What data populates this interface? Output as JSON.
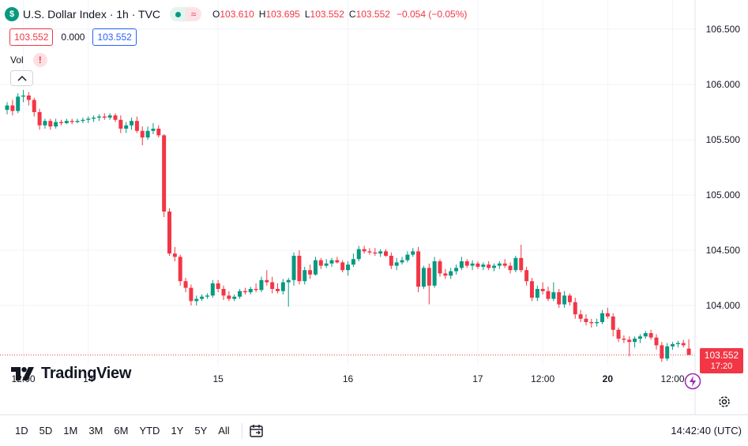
{
  "legend": {
    "symbol_icon": "dollar-icon",
    "symbol_glyph": "$",
    "title": "U.S. Dollar Index · 1h · TVC",
    "status_glyph": "≈",
    "ohlc": {
      "o_label": "O",
      "o": "103.610",
      "h_label": "H",
      "h": "103.695",
      "l_label": "L",
      "l": "103.552",
      "c_label": "C",
      "c": "103.552",
      "change": "−0.054 (−0.05%)"
    },
    "bid": "103.552",
    "spread": "0.000",
    "ask": "103.552",
    "volume_label": "Vol",
    "warning_glyph": "!"
  },
  "last_price": {
    "price": "103.552",
    "countdown": "17:20"
  },
  "brand": "TradingView",
  "bottom_bar": {
    "ranges": [
      "1D",
      "5D",
      "1M",
      "3M",
      "6M",
      "YTD",
      "1Y",
      "5Y",
      "All"
    ],
    "clock": "14:42:40 (UTC)"
  },
  "colors": {
    "up": "#089981",
    "down": "#f23645",
    "grid": "#f0f3fa",
    "axis_text": "#131722"
  },
  "chart_data": {
    "type": "candlestick",
    "y_axis": {
      "range": [
        103.4,
        106.7
      ],
      "ticks": [
        "106.500",
        "106.000",
        "105.500",
        "105.000",
        "104.500",
        "104.000"
      ],
      "tick_values": [
        106.5,
        106.0,
        105.5,
        105.0,
        104.5,
        104.0
      ]
    },
    "x_axis": {
      "labels": [
        {
          "text": "12:00",
          "bar": 3,
          "bold": false
        },
        {
          "text": "14",
          "bar": 15,
          "bold": false
        },
        {
          "text": "15",
          "bar": 39,
          "bold": false
        },
        {
          "text": "16",
          "bar": 63,
          "bold": false
        },
        {
          "text": "17",
          "bar": 87,
          "bold": false
        },
        {
          "text": "12:00",
          "bar": 99,
          "bold": false
        },
        {
          "text": "20",
          "bar": 111,
          "bold": true
        },
        {
          "text": "12:00",
          "bar": 123,
          "bold": false
        }
      ]
    },
    "last_value": 103.552,
    "grid": true,
    "candles": [
      [
        105.77,
        105.84,
        105.73,
        105.81
      ],
      [
        105.81,
        105.86,
        105.72,
        105.76
      ],
      [
        105.76,
        105.92,
        105.74,
        105.89
      ],
      [
        105.89,
        105.95,
        105.84,
        105.9
      ],
      [
        105.9,
        105.93,
        105.81,
        105.86
      ],
      [
        105.86,
        105.88,
        105.71,
        105.75
      ],
      [
        105.75,
        105.78,
        105.59,
        105.63
      ],
      [
        105.63,
        105.69,
        105.6,
        105.67
      ],
      [
        105.67,
        105.69,
        105.59,
        105.62
      ],
      [
        105.62,
        105.69,
        105.6,
        105.66
      ],
      [
        105.66,
        105.68,
        105.63,
        105.65
      ],
      [
        105.65,
        105.69,
        105.64,
        105.67
      ],
      [
        105.67,
        105.69,
        105.64,
        105.66
      ],
      [
        105.66,
        105.69,
        105.65,
        105.67
      ],
      [
        105.67,
        105.7,
        105.65,
        105.68
      ],
      [
        105.68,
        105.71,
        105.65,
        105.69
      ],
      [
        105.69,
        105.72,
        105.66,
        105.7
      ],
      [
        105.7,
        105.73,
        105.67,
        105.71
      ],
      [
        105.71,
        105.74,
        105.68,
        105.7
      ],
      [
        105.7,
        105.74,
        105.68,
        105.72
      ],
      [
        105.72,
        105.74,
        105.66,
        105.68
      ],
      [
        105.68,
        105.72,
        105.56,
        105.6
      ],
      [
        105.6,
        105.66,
        105.56,
        105.63
      ],
      [
        105.63,
        105.7,
        105.59,
        105.67
      ],
      [
        105.67,
        105.71,
        105.56,
        105.58
      ],
      [
        105.58,
        105.62,
        105.45,
        105.52
      ],
      [
        105.52,
        105.62,
        105.5,
        105.58
      ],
      [
        105.58,
        105.65,
        105.55,
        105.6
      ],
      [
        105.6,
        105.63,
        105.52,
        105.54
      ],
      [
        105.54,
        105.55,
        104.8,
        104.85
      ],
      [
        104.85,
        104.88,
        104.45,
        104.47
      ],
      [
        104.47,
        104.53,
        104.4,
        104.44
      ],
      [
        104.44,
        104.46,
        104.18,
        104.22
      ],
      [
        104.22,
        104.25,
        104.12,
        104.16
      ],
      [
        104.16,
        104.19,
        104.0,
        104.04
      ],
      [
        104.04,
        104.09,
        104.0,
        104.06
      ],
      [
        104.06,
        104.1,
        104.04,
        104.08
      ],
      [
        104.08,
        104.11,
        104.06,
        104.09
      ],
      [
        104.09,
        104.23,
        104.07,
        104.2
      ],
      [
        104.2,
        104.23,
        104.12,
        104.15
      ],
      [
        104.15,
        104.18,
        104.05,
        104.09
      ],
      [
        104.09,
        104.13,
        104.04,
        104.06
      ],
      [
        104.06,
        104.1,
        104.04,
        104.08
      ],
      [
        104.08,
        104.15,
        104.06,
        104.13
      ],
      [
        104.13,
        104.16,
        104.1,
        104.12
      ],
      [
        104.12,
        104.17,
        104.1,
        104.15
      ],
      [
        104.15,
        104.2,
        104.12,
        104.14
      ],
      [
        104.14,
        104.26,
        104.12,
        104.23
      ],
      [
        104.23,
        104.32,
        104.18,
        104.21
      ],
      [
        104.21,
        104.26,
        104.11,
        104.15
      ],
      [
        104.15,
        104.2,
        104.11,
        104.13
      ],
      [
        104.13,
        104.24,
        104.1,
        104.21
      ],
      [
        104.21,
        104.25,
        103.99,
        104.23
      ],
      [
        104.23,
        104.48,
        104.18,
        104.45
      ],
      [
        104.45,
        104.5,
        104.19,
        104.22
      ],
      [
        104.22,
        104.35,
        104.19,
        104.32
      ],
      [
        104.32,
        104.37,
        104.24,
        104.28
      ],
      [
        104.28,
        104.44,
        104.27,
        104.41
      ],
      [
        104.41,
        104.43,
        104.33,
        104.36
      ],
      [
        104.36,
        104.42,
        104.34,
        104.38
      ],
      [
        104.38,
        104.43,
        104.35,
        104.41
      ],
      [
        104.41,
        104.44,
        104.38,
        104.39
      ],
      [
        104.39,
        104.41,
        104.3,
        104.32
      ],
      [
        104.32,
        104.4,
        104.27,
        104.37
      ],
      [
        104.37,
        104.47,
        104.35,
        104.42
      ],
      [
        104.42,
        104.54,
        104.4,
        104.51
      ],
      [
        104.51,
        104.54,
        104.47,
        104.49
      ],
      [
        104.49,
        104.52,
        104.46,
        104.48
      ],
      [
        104.48,
        104.52,
        104.45,
        104.47
      ],
      [
        104.47,
        104.51,
        104.44,
        104.49
      ],
      [
        104.49,
        104.51,
        104.44,
        104.45
      ],
      [
        104.45,
        104.48,
        104.33,
        104.36
      ],
      [
        104.36,
        104.43,
        104.32,
        104.39
      ],
      [
        104.39,
        104.44,
        104.37,
        104.41
      ],
      [
        104.41,
        104.49,
        104.39,
        104.46
      ],
      [
        104.46,
        104.52,
        104.44,
        104.49
      ],
      [
        104.49,
        104.53,
        104.12,
        104.17
      ],
      [
        104.17,
        104.36,
        104.15,
        104.34
      ],
      [
        104.34,
        104.38,
        104.01,
        104.18
      ],
      [
        104.18,
        104.44,
        104.16,
        104.4
      ],
      [
        104.4,
        104.42,
        104.26,
        104.29
      ],
      [
        104.29,
        104.33,
        104.24,
        104.27
      ],
      [
        104.27,
        104.34,
        104.24,
        104.31
      ],
      [
        104.31,
        104.37,
        104.28,
        104.34
      ],
      [
        104.34,
        104.44,
        104.32,
        104.4
      ],
      [
        104.4,
        104.42,
        104.34,
        104.36
      ],
      [
        104.36,
        104.41,
        104.32,
        104.38
      ],
      [
        104.38,
        104.4,
        104.33,
        104.35
      ],
      [
        104.35,
        104.39,
        104.32,
        104.37
      ],
      [
        104.37,
        104.4,
        104.32,
        104.34
      ],
      [
        104.34,
        104.38,
        104.31,
        104.36
      ],
      [
        104.36,
        104.4,
        104.33,
        104.38
      ],
      [
        104.38,
        104.42,
        104.34,
        104.36
      ],
      [
        104.36,
        104.39,
        104.29,
        104.32
      ],
      [
        104.32,
        104.45,
        104.3,
        104.43
      ],
      [
        104.43,
        104.55,
        104.3,
        104.32
      ],
      [
        104.32,
        104.35,
        104.18,
        104.22
      ],
      [
        104.22,
        104.25,
        104.04,
        104.07
      ],
      [
        104.07,
        104.18,
        104.04,
        104.15
      ],
      [
        104.15,
        104.21,
        104.1,
        104.13
      ],
      [
        104.13,
        104.17,
        104.04,
        104.06
      ],
      [
        104.06,
        104.21,
        104.04,
        104.12
      ],
      [
        104.12,
        104.15,
        103.98,
        104.01
      ],
      [
        104.01,
        104.13,
        103.98,
        104.09
      ],
      [
        104.09,
        104.11,
        104.0,
        104.03
      ],
      [
        104.03,
        104.07,
        103.88,
        103.92
      ],
      [
        103.92,
        103.96,
        103.85,
        103.88
      ],
      [
        103.88,
        103.92,
        103.82,
        103.85
      ],
      [
        103.85,
        103.88,
        103.8,
        103.84
      ],
      [
        103.84,
        103.88,
        103.81,
        103.85
      ],
      [
        103.85,
        103.96,
        103.83,
        103.93
      ],
      [
        103.93,
        103.98,
        103.88,
        103.9
      ],
      [
        103.9,
        103.93,
        103.72,
        103.78
      ],
      [
        103.78,
        103.8,
        103.67,
        103.7
      ],
      [
        103.7,
        103.73,
        103.66,
        103.69
      ],
      [
        103.69,
        103.72,
        103.54,
        103.67
      ],
      [
        103.67,
        103.72,
        103.62,
        103.7
      ],
      [
        103.7,
        103.74,
        103.66,
        103.72
      ],
      [
        103.72,
        103.77,
        103.7,
        103.75
      ],
      [
        103.75,
        103.78,
        103.69,
        103.71
      ],
      [
        103.71,
        103.74,
        103.6,
        103.64
      ],
      [
        103.64,
        103.67,
        103.49,
        103.52
      ],
      [
        103.52,
        103.66,
        103.5,
        103.63
      ],
      [
        103.63,
        103.67,
        103.6,
        103.65
      ],
      [
        103.65,
        103.68,
        103.62,
        103.66
      ],
      [
        103.66,
        103.69,
        103.62,
        103.64
      ],
      [
        103.61,
        103.695,
        103.552,
        103.552
      ]
    ]
  }
}
